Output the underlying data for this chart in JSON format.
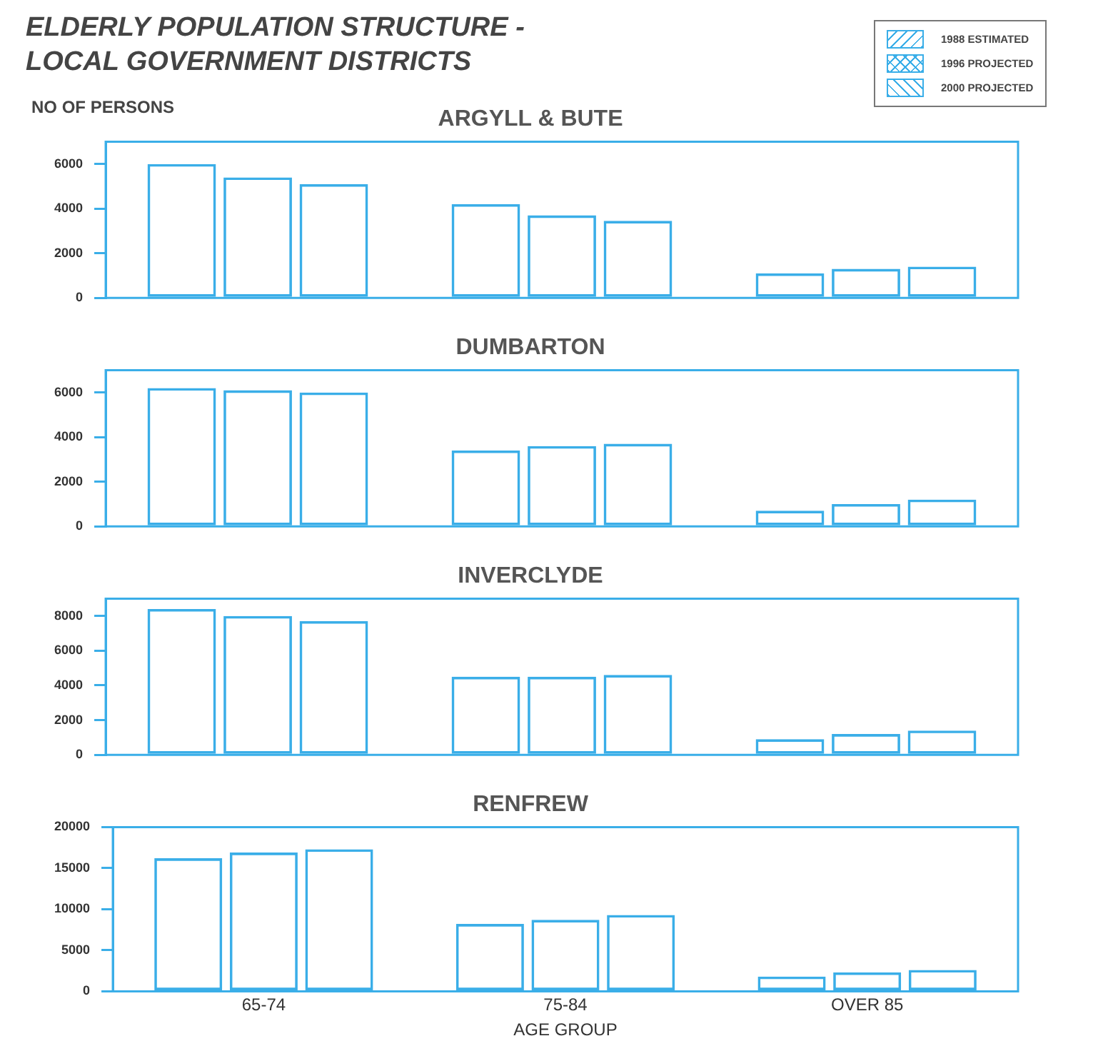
{
  "chart_data": [
    {
      "type": "bar",
      "title": "ARGYLL & BUTE",
      "ylabel": "NO OF PERSONS",
      "annotations": [
        "ELDERLY POPULATION STRUCTURE -",
        "LOCAL GOVERNMENT DISTRICTS"
      ],
      "categories": [
        null,
        null,
        null
      ],
      "series": [
        {
          "name": "1988 ESTIMATED",
          "color": "#3aaee8",
          "values": [
            6000,
            4200,
            1100
          ]
        },
        {
          "name": "1996 PROJECTED",
          "color": "#3aaee8",
          "values": [
            5400,
            3700,
            1300
          ]
        },
        {
          "name": "2000 PROJECTED",
          "color": "#3aaee8",
          "values": [
            5100,
            3450,
            1400
          ]
        }
      ],
      "ylim": [
        0,
        7000
      ],
      "yticks": [
        0,
        2000,
        4000,
        6000
      ],
      "grid": false,
      "legend": "top right",
      "tick_labels": "y"
    },
    {
      "type": "bar",
      "title": "DUMBARTON",
      "categories": [
        null,
        null,
        null
      ],
      "series": [
        {
          "color": "#3aaee8",
          "values": [
            6200,
            3400,
            700
          ]
        },
        {
          "color": "#3aaee8",
          "values": [
            6100,
            3600,
            1000
          ]
        },
        {
          "color": "#3aaee8",
          "values": [
            6000,
            3700,
            1200
          ]
        }
      ],
      "ylim": [
        0,
        7000
      ],
      "yticks": [
        0,
        2000,
        4000,
        6000
      ],
      "grid": false,
      "tick_labels": "y"
    },
    {
      "type": "bar",
      "title": "INVERCLYDE",
      "categories": [
        null,
        null,
        null
      ],
      "series": [
        {
          "color": "#3aaee8",
          "values": [
            8400,
            4500,
            900
          ]
        },
        {
          "color": "#3aaee8",
          "values": [
            8000,
            4500,
            1200
          ]
        },
        {
          "color": "#3aaee8",
          "values": [
            7700,
            4600,
            1400
          ]
        }
      ],
      "ylim": [
        0,
        9000
      ],
      "yticks": [
        0,
        2000,
        4000,
        6000,
        8000
      ],
      "grid": false,
      "tick_labels": "y"
    },
    {
      "type": "bar",
      "title": "RENFREW",
      "xlabel": "AGE GROUP",
      "categories": [
        "65-74",
        "75-84",
        "OVER 85"
      ],
      "series": [
        {
          "color": "#3aaee8",
          "values": [
            16200,
            8200,
            1800
          ]
        },
        {
          "color": "#3aaee8",
          "values": [
            16900,
            8700,
            2300
          ]
        },
        {
          "color": "#3aaee8",
          "values": [
            17300,
            9300,
            2600
          ]
        }
      ],
      "ylim": [
        0,
        20000
      ],
      "yticks": [
        0,
        5000,
        10000,
        15000,
        20000
      ],
      "grid": false
    }
  ]
}
